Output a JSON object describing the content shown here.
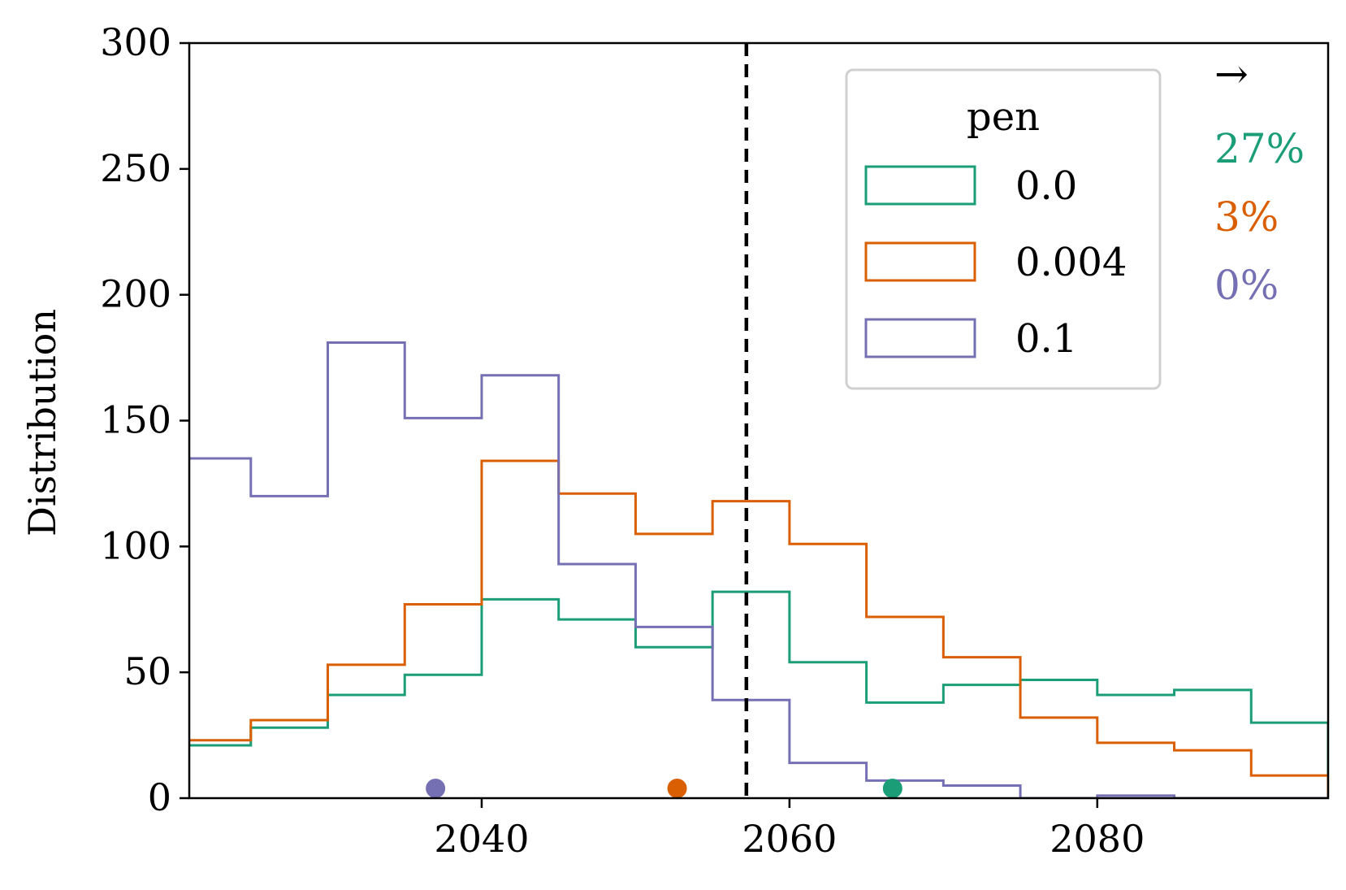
{
  "chart_data": {
    "type": "histogram",
    "xlabel": "",
    "ylabel": "Distribution",
    "xlim": [
      2021,
      2095
    ],
    "ylim": [
      0,
      300
    ],
    "xticks": [
      2040,
      2060,
      2080
    ],
    "yticks": [
      0,
      50,
      100,
      150,
      200,
      250,
      300
    ],
    "grid": false,
    "bin_edges": [
      2020,
      2025,
      2030,
      2035,
      2040,
      2045,
      2050,
      2055,
      2060,
      2065,
      2070,
      2075,
      2080,
      2085,
      2090,
      2095
    ],
    "series": [
      {
        "name": "0.0",
        "color": "#1b9e77",
        "values": [
          21,
          28,
          41,
          49,
          79,
          71,
          60,
          82,
          54,
          38,
          45,
          47,
          41,
          43,
          30
        ],
        "marker_x": 2066.7,
        "pct": "27%"
      },
      {
        "name": "0.004",
        "color": "#d95f02",
        "values": [
          23,
          31,
          53,
          77,
          134,
          121,
          105,
          118,
          101,
          72,
          56,
          32,
          22,
          19,
          9
        ],
        "marker_x": 2052.7,
        "pct": "3%"
      },
      {
        "name": "0.1",
        "color": "#7570b3",
        "values": [
          135,
          120,
          181,
          151,
          168,
          93,
          68,
          39,
          14,
          7,
          5,
          0,
          1,
          0,
          0
        ],
        "marker_x": 2037.0,
        "pct": "0%"
      }
    ],
    "reference_line_x": 2057.2,
    "legend": {
      "title": "pen",
      "position": "upper-right"
    },
    "arrow_label": "→"
  }
}
